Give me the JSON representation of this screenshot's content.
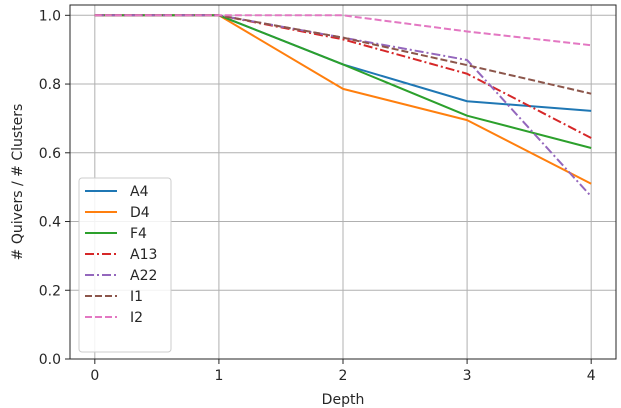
{
  "chart_data": {
    "type": "line",
    "title": "",
    "xlabel": "Depth",
    "ylabel": "# Quivers / # Clusters",
    "x": [
      0,
      1,
      2,
      3,
      4
    ],
    "xticks": [
      "0",
      "1",
      "2",
      "3",
      "4"
    ],
    "yticks": [
      "0.0",
      "0.2",
      "0.4",
      "0.6",
      "0.8",
      "1.0"
    ],
    "xlim": [
      -0.2,
      4.2
    ],
    "ylim": [
      0.0,
      1.03
    ],
    "grid": true,
    "legend_position": "lower-left",
    "series": [
      {
        "name": "A4",
        "values": [
          1.0,
          1.0,
          0.857,
          0.75,
          0.722
        ],
        "color": "#1f77b4",
        "dash": "solid"
      },
      {
        "name": "D4",
        "values": [
          1.0,
          1.0,
          0.786,
          0.695,
          0.51
        ],
        "color": "#ff7f0e",
        "dash": "solid"
      },
      {
        "name": "F4",
        "values": [
          1.0,
          1.0,
          0.857,
          0.708,
          0.614
        ],
        "color": "#2ca02c",
        "dash": "solid"
      },
      {
        "name": "A13",
        "values": [
          1.0,
          1.0,
          0.93,
          0.83,
          0.643
        ],
        "color": "#d62728",
        "dash": "dashdot"
      },
      {
        "name": "A22",
        "values": [
          1.0,
          1.0,
          0.935,
          0.87,
          0.473
        ],
        "color": "#9467bd",
        "dash": "dashdot"
      },
      {
        "name": "I1",
        "values": [
          1.0,
          1.0,
          0.935,
          0.855,
          0.772
        ],
        "color": "#8c564b",
        "dash": "dashed"
      },
      {
        "name": "I2",
        "values": [
          1.0,
          1.0,
          1.0,
          0.953,
          0.913
        ],
        "color": "#e377c2",
        "dash": "dashed"
      }
    ]
  }
}
